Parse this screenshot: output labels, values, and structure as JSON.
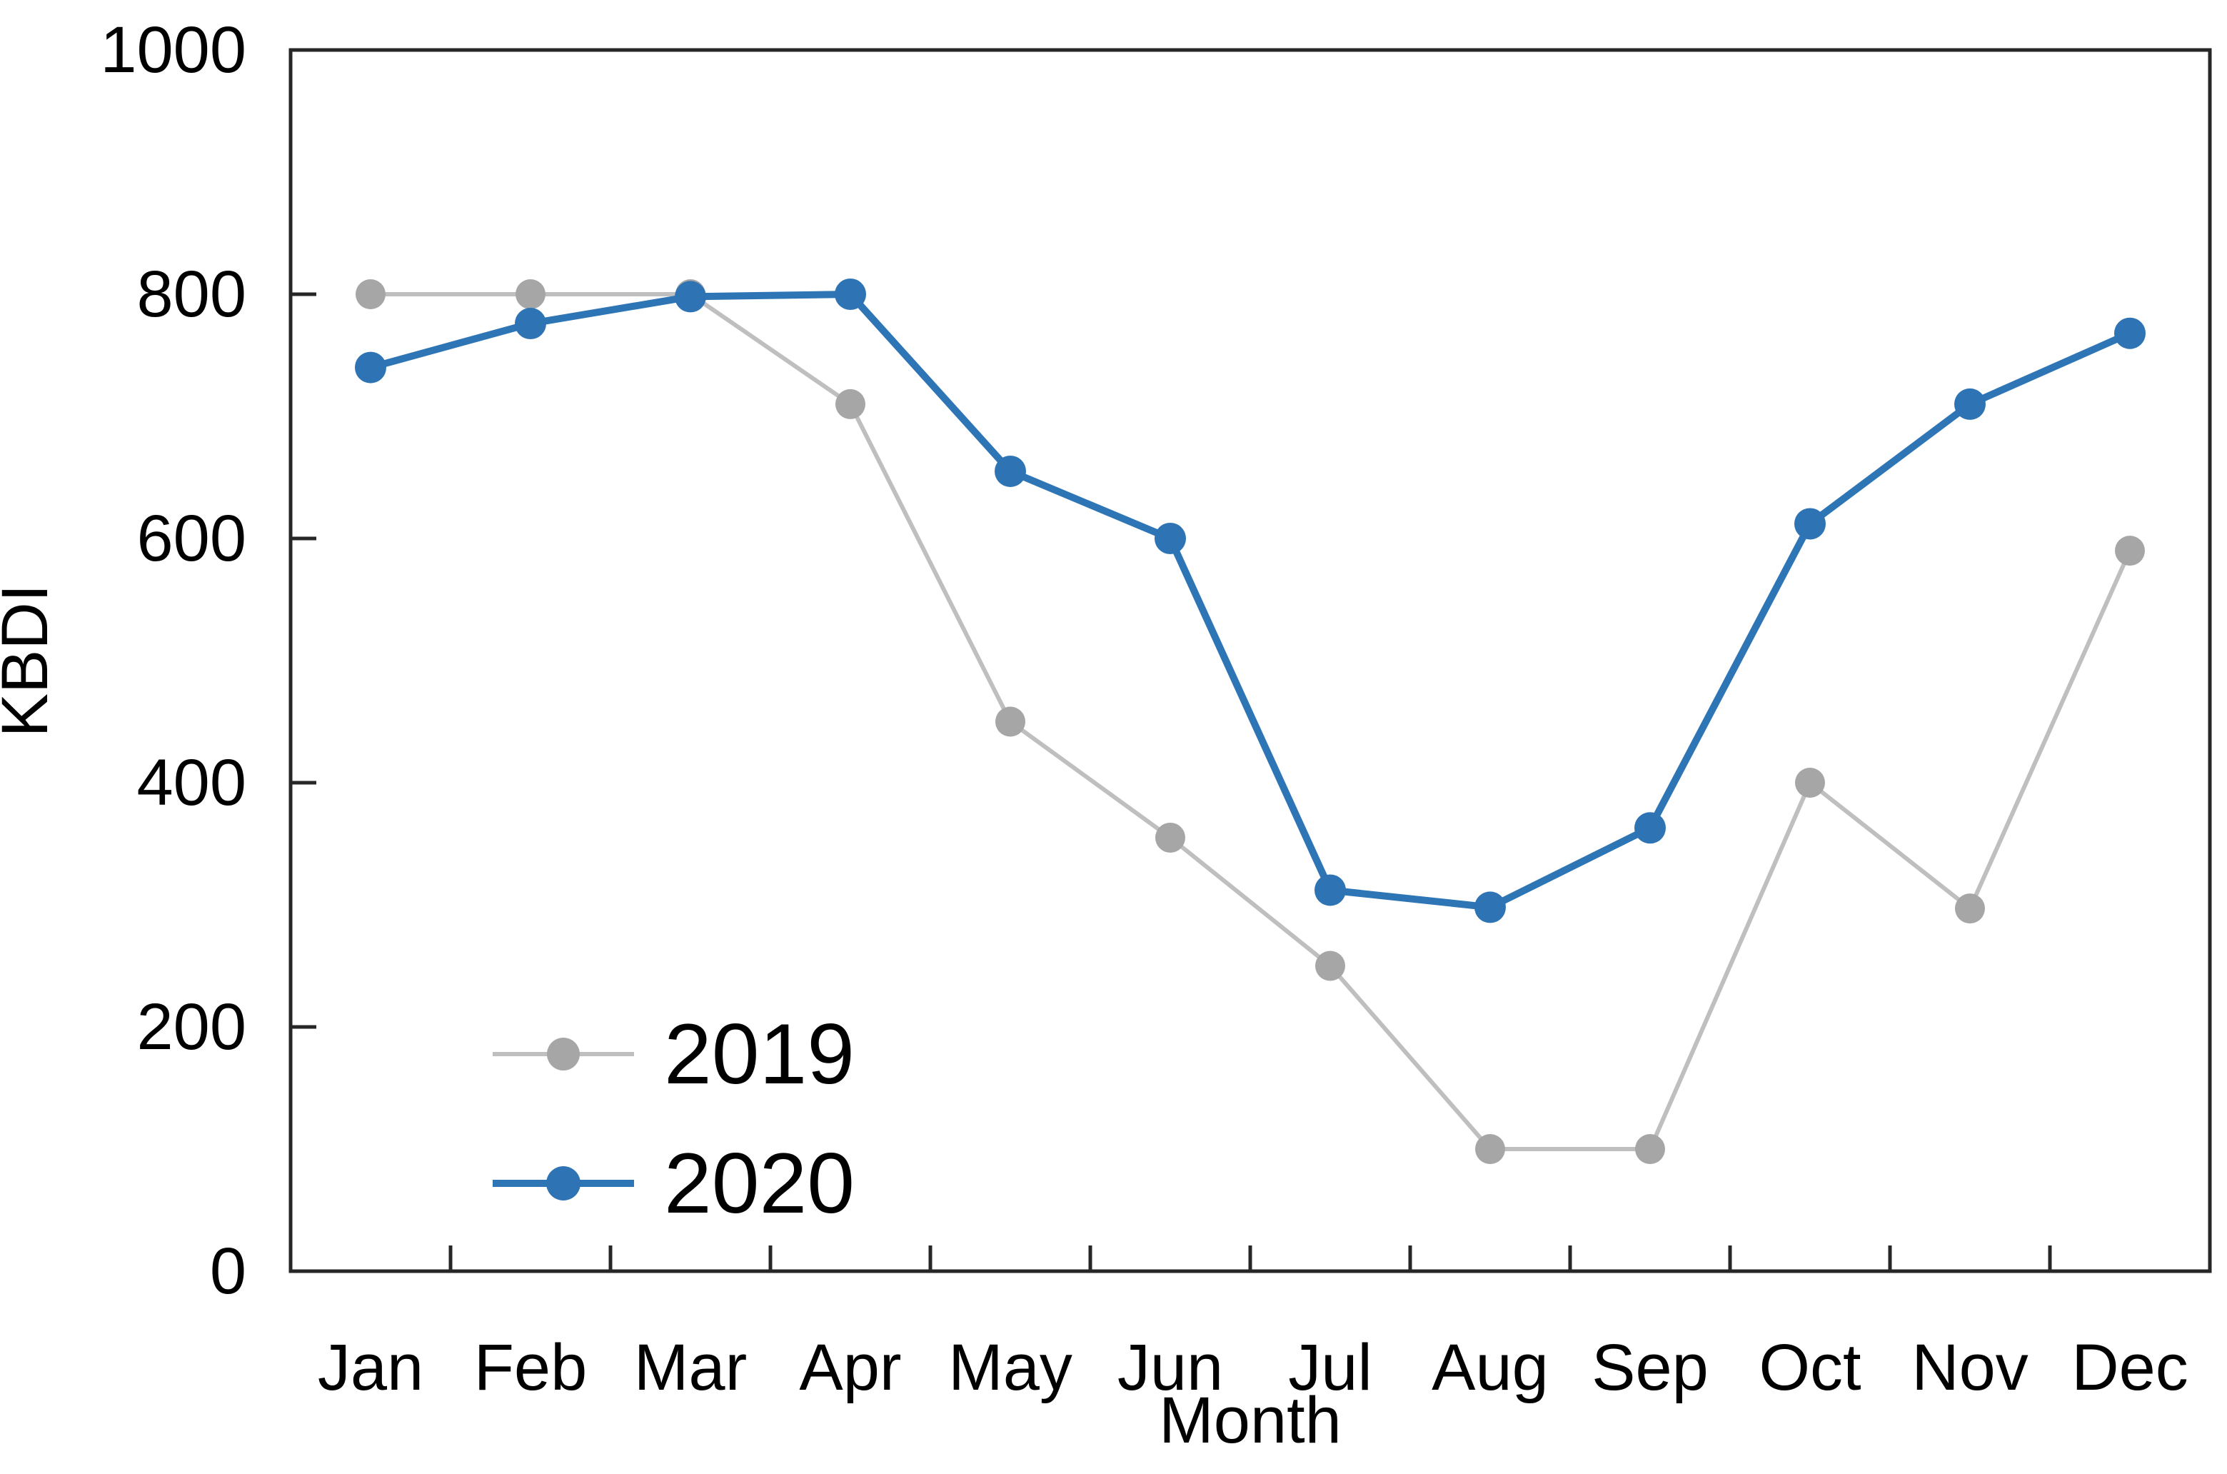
{
  "chart_data": {
    "type": "line",
    "title": "",
    "xlabel": "Month",
    "ylabel": "KBDI",
    "categories": [
      "Jan",
      "Feb",
      "Mar",
      "Apr",
      "May",
      "Jun",
      "Jul",
      "Aug",
      "Sep",
      "Oct",
      "Nov",
      "Dec"
    ],
    "series": [
      {
        "name": "2019",
        "line_color": "#BFBFBF",
        "marker_color": "#A6A6A6",
        "values": [
          800,
          800,
          800,
          710,
          450,
          355,
          250,
          100,
          100,
          400,
          297,
          590
        ]
      },
      {
        "name": "2020",
        "line_color": "#2E75B6",
        "marker_color": "#2E74B5",
        "values": [
          740,
          776,
          798,
          800,
          655,
          600,
          312,
          298,
          363,
          612,
          710,
          768
        ]
      }
    ],
    "ylim": [
      0,
      1000
    ],
    "ytick_step": 200,
    "ytick_labels": [
      "0",
      "200",
      "400",
      "600",
      "800",
      "1000"
    ],
    "legend_position": "lower-left",
    "legend_entries": [
      "2019",
      "2020"
    ],
    "grid": false,
    "axis_color": "#262626",
    "text_color": "#000000",
    "background_color": "#ffffff"
  }
}
